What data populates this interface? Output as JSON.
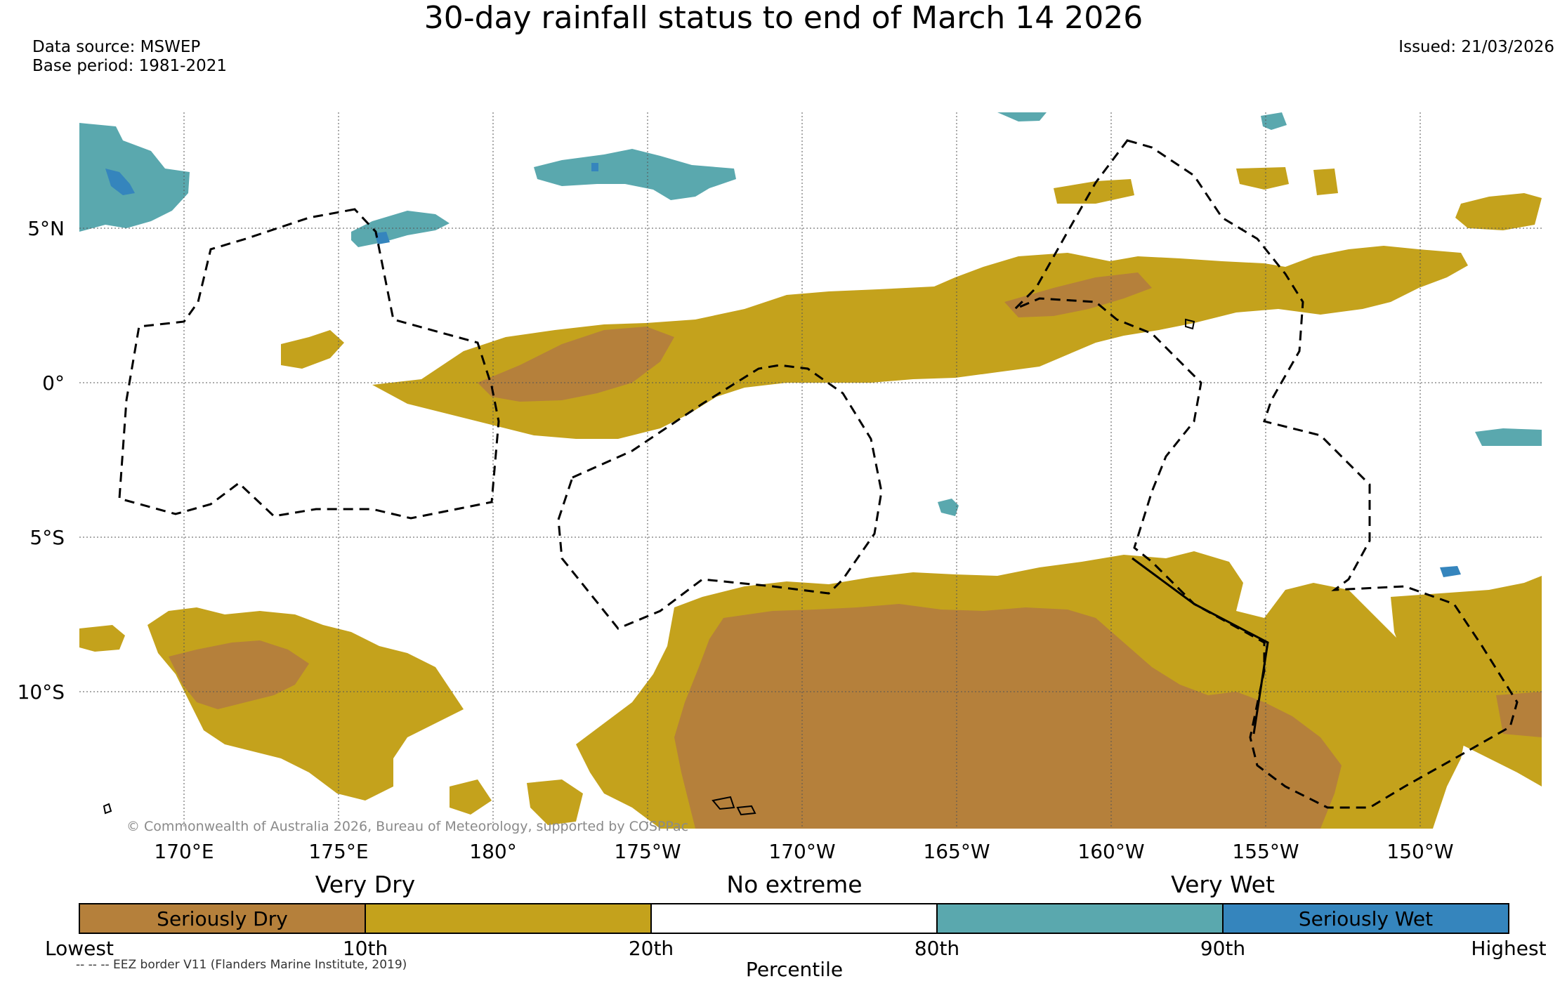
{
  "title": "30-day rainfall status to end of March 14 2026",
  "data_source": "Data source: MSWEP",
  "base_period": "Base period: 1981-2021",
  "issued": "Issued: 21/03/2026",
  "copyright": "© Commonwealth of Australia 2026, Bureau of Meteorology, supported by COSPPac",
  "lat_labels": [
    "5°N",
    "0°",
    "5°S",
    "10°S"
  ],
  "lon_labels": [
    "170°E",
    "175°E",
    "180°",
    "175°W",
    "170°W",
    "165°W",
    "160°W",
    "155°W",
    "150°W"
  ],
  "legend": {
    "categories": [
      "Very Dry",
      "No extreme",
      "Very Wet"
    ],
    "boxes": [
      {
        "label": "Seriously Dry",
        "color": "#b5803b"
      },
      {
        "label": "",
        "color": "#c4a21c"
      },
      {
        "label": "",
        "color": "#ffffff"
      },
      {
        "label": "",
        "color": "#5aa8ae"
      },
      {
        "label": "Seriously Wet",
        "color": "#3585bd"
      }
    ],
    "percentiles": [
      "Lowest",
      "10th",
      "20th",
      "80th",
      "90th",
      "Highest"
    ],
    "axis_title": "Percentile",
    "eez_note": "-- -- -- EEZ border V11 (Flanders Marine Institute, 2019)"
  },
  "colors": {
    "seriously_dry": "#b5803b",
    "very_dry": "#c4a21c",
    "very_wet": "#5aa8ae",
    "seriously_wet": "#3585bd"
  }
}
